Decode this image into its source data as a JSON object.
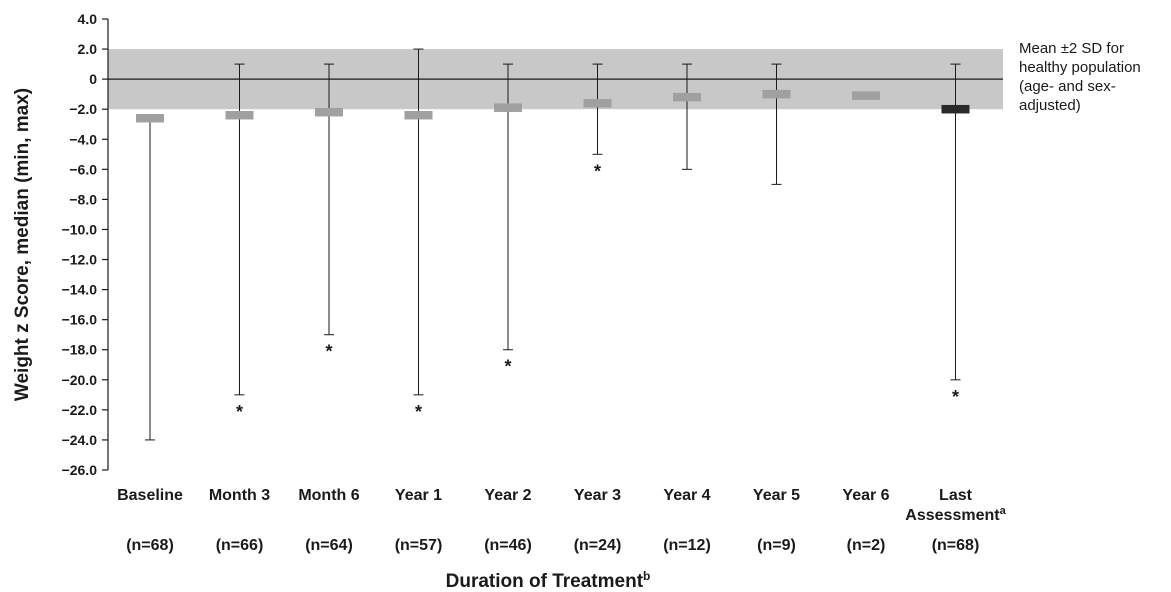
{
  "chart_data": {
    "type": "bar",
    "xlabel": "Duration of Treatment",
    "xlabel_superscript": "b",
    "ylabel": "Weight z Score, median (min, max)",
    "ylim": [
      -26,
      4
    ],
    "yticks": [
      "4.0",
      "2.0",
      "0",
      "−2.0",
      "−4.0",
      "−6.0",
      "−8.0",
      "−10.0",
      "−12.0",
      "−14.0",
      "−16.0",
      "−18.0",
      "−20.0",
      "−22.0",
      "−24.0",
      "−26.0"
    ],
    "ytick_values": [
      4,
      2,
      0,
      -2,
      -4,
      -6,
      -8,
      -10,
      -12,
      -14,
      -16,
      -18,
      -20,
      -22,
      -24,
      -26
    ],
    "reference_band": {
      "low": -2,
      "high": 2,
      "color": "#c8c8c8",
      "label_lines": [
        "Mean ±2 SD for",
        "healthy population",
        "(age- and sex-",
        "adjusted)"
      ]
    },
    "reference_line": 0,
    "categories": [
      {
        "label": "Baseline",
        "label2": "",
        "n": "(n=68)",
        "median": -2.6,
        "min": -24,
        "max": null,
        "star": false,
        "color": "#a0a0a0"
      },
      {
        "label": "Month 3",
        "label2": "",
        "n": "(n=66)",
        "median": -2.4,
        "min": -21,
        "max": 1,
        "star": true,
        "color": "#a0a0a0"
      },
      {
        "label": "Month 6",
        "label2": "",
        "n": "(n=64)",
        "median": -2.2,
        "min": -17,
        "max": 1,
        "star": true,
        "color": "#a0a0a0"
      },
      {
        "label": "Year 1",
        "label2": "",
        "n": "(n=57)",
        "median": -2.4,
        "min": -21,
        "max": 2,
        "star": true,
        "color": "#a0a0a0"
      },
      {
        "label": "Year 2",
        "label2": "",
        "n": "(n=46)",
        "median": -1.9,
        "min": -18,
        "max": 1,
        "star": true,
        "color": "#a0a0a0"
      },
      {
        "label": "Year 3",
        "label2": "",
        "n": "(n=24)",
        "median": -1.6,
        "min": -5,
        "max": 1,
        "star": true,
        "color": "#a0a0a0"
      },
      {
        "label": "Year 4",
        "label2": "",
        "n": "(n=12)",
        "median": -1.2,
        "min": -6,
        "max": 1,
        "star": false,
        "color": "#a0a0a0"
      },
      {
        "label": "Year 5",
        "label2": "",
        "n": "(n=9)",
        "median": -1.0,
        "min": -7,
        "max": 1,
        "star": false,
        "color": "#a0a0a0"
      },
      {
        "label": "Year 6",
        "label2": "",
        "n": "(n=2)",
        "median": -1.1,
        "min": null,
        "max": null,
        "star": false,
        "color": "#a0a0a0"
      },
      {
        "label": "Last",
        "label2": "Assessment",
        "label2_superscript": "a",
        "n": "(n=68)",
        "median": -2.0,
        "min": -20,
        "max": 1,
        "star": true,
        "color": "#2a2a2a"
      }
    ],
    "star_symbol": "*"
  }
}
